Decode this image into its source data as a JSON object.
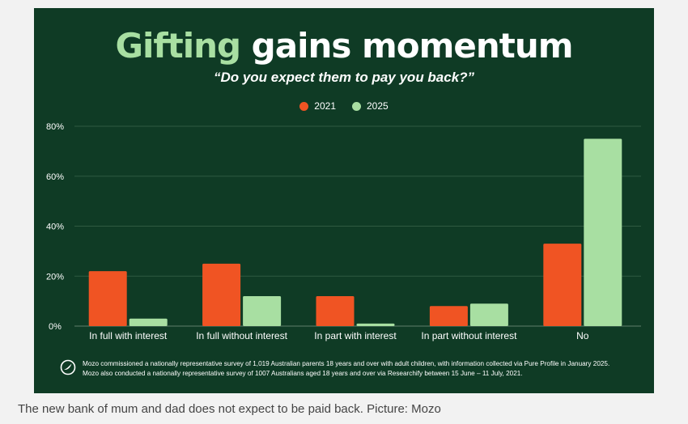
{
  "page": {
    "caption": "The new bank of mum and dad does not expect to be paid back. Picture: Mozo"
  },
  "infographic": {
    "title_highlight": "Gifting",
    "title_rest": " gains momentum",
    "subtitle": "“Do you expect them to pay you back?”",
    "footnote_lines": [
      "Mozo commissioned a nationally representative survey of 1,019 Australian parents 18 years and over with adult children, with information collected via Pure Profile in January 2025.",
      "Mozo also conducted a nationally representative survey of 1007 Australians aged 18 years and over via Researchify between 15 June – 11 July, 2021."
    ],
    "logo_icon": "mozo-logo-icon",
    "colors": {
      "background": "#0f3b25",
      "title_highlight": "#a8dfa2",
      "text": "#ffffff"
    }
  },
  "chart_data": {
    "type": "bar",
    "title": "Gifting gains momentum",
    "subtitle": "“Do you expect them to pay you back?”",
    "categories": [
      "In full with interest",
      "In full without interest",
      "In part with interest",
      "In part without interest",
      "No"
    ],
    "series": [
      {
        "name": "2021",
        "color": "#f05423",
        "values": [
          22,
          25,
          12,
          8,
          33
        ]
      },
      {
        "name": "2025",
        "color": "#a8dfa2",
        "values": [
          3,
          12,
          1,
          9,
          75
        ]
      }
    ],
    "ylim": [
      0,
      80
    ],
    "yticks": [
      0,
      20,
      40,
      60,
      80
    ],
    "ytick_labels": [
      "0%",
      "20%",
      "40%",
      "60%",
      "80%"
    ],
    "grid": true,
    "legend": "top-center",
    "xlabel": "",
    "ylabel": ""
  }
}
